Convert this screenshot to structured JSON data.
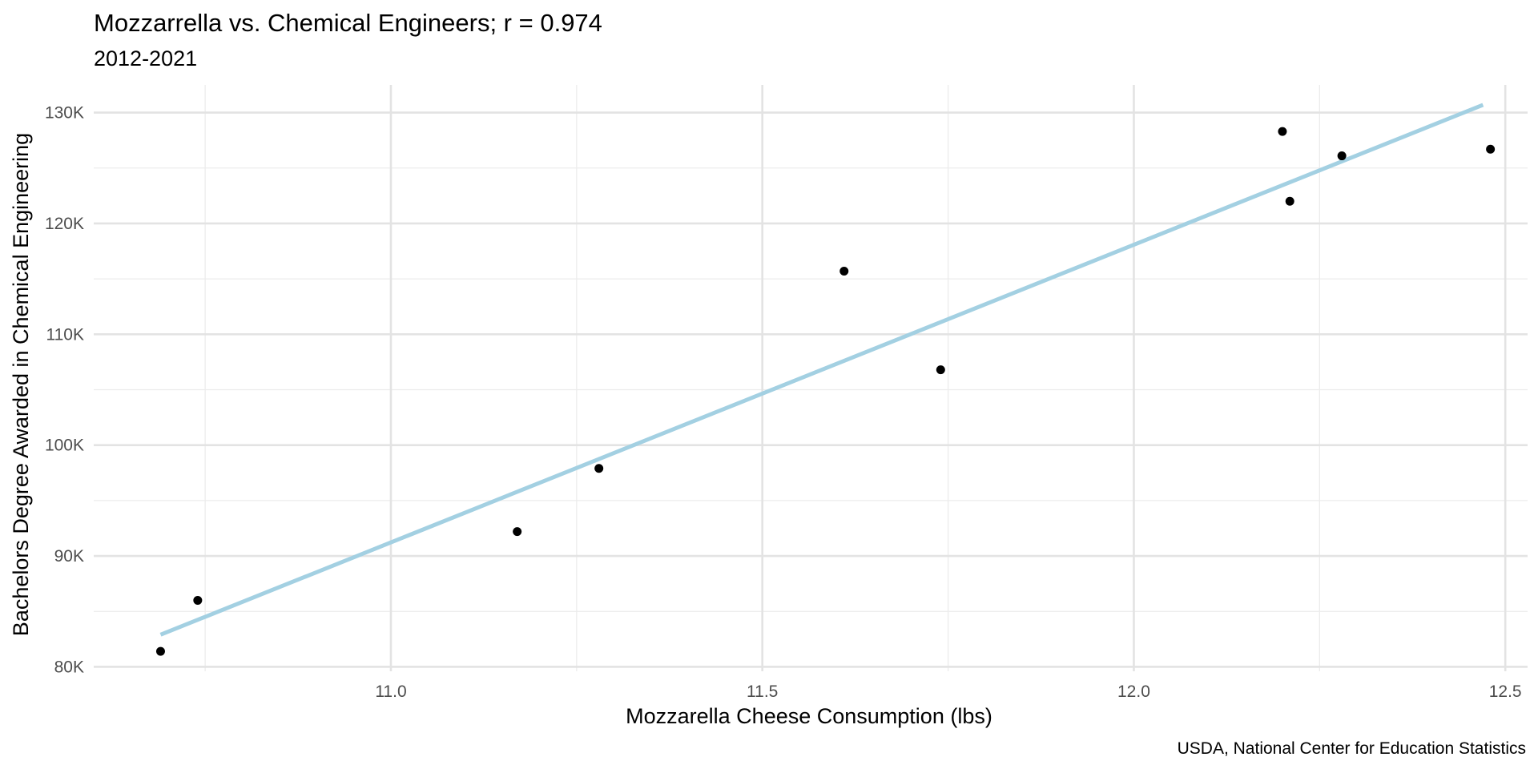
{
  "chart_data": {
    "type": "scatter",
    "title": "Mozzarrella vs. Chemical Engineers; r = 0.974",
    "subtitle": "2012-2021",
    "xlabel": "Mozzarella Cheese Consumption (lbs)",
    "ylabel": "Bachelors Degree Awarded in Chemical Engineering",
    "caption": "USDA, National Center for Education Statistics",
    "xlim": [
      10.6,
      12.53
    ],
    "ylim": [
      79600,
      132500
    ],
    "x_ticks": [
      11.0,
      11.5,
      12.0,
      12.5
    ],
    "x_tick_labels": [
      "11.0",
      "11.5",
      "12.0",
      "12.5"
    ],
    "y_ticks": [
      80000,
      90000,
      100000,
      110000,
      120000,
      130000
    ],
    "y_tick_labels": [
      "80K",
      "90K",
      "100K",
      "110K",
      "120K",
      "130K"
    ],
    "grid": true,
    "points": [
      {
        "x": 10.69,
        "y": 81400
      },
      {
        "x": 10.74,
        "y": 86000
      },
      {
        "x": 11.17,
        "y": 92200
      },
      {
        "x": 11.28,
        "y": 97900
      },
      {
        "x": 11.61,
        "y": 115700
      },
      {
        "x": 11.74,
        "y": 106800
      },
      {
        "x": 12.2,
        "y": 128300
      },
      {
        "x": 12.21,
        "y": 122000
      },
      {
        "x": 12.28,
        "y": 126100
      },
      {
        "x": 12.48,
        "y": 126700
      }
    ],
    "fit_line": {
      "x": [
        10.69,
        12.47
      ],
      "y": [
        82900,
        130700
      ]
    },
    "point_color": "#000000",
    "line_color": "#a3d0e2"
  }
}
